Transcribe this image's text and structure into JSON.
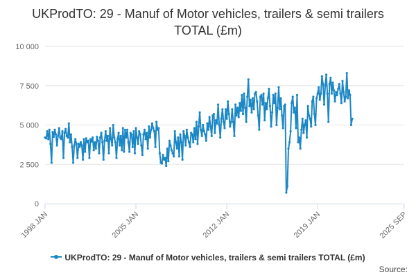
{
  "chart_data": {
    "type": "line",
    "title": "UKProdTO: 29 - Manuf of Motor vehicles, trailers & semi trailers TOTAL (£m)",
    "ylim": [
      0,
      10000
    ],
    "yticks": [
      0,
      2500,
      5000,
      7500,
      10000
    ],
    "ytick_labels": [
      "0",
      "2 500",
      "5 000",
      "7 500",
      "10 000"
    ],
    "xlim": [
      1998.0,
      2025.67
    ],
    "xticks": [
      {
        "pos": 1998.0,
        "label": "1998 JAN"
      },
      {
        "pos": 2005.0,
        "label": "2005 JAN"
      },
      {
        "pos": 2012.0,
        "label": "2012 JAN"
      },
      {
        "pos": 2019.0,
        "label": "2019 JAN"
      },
      {
        "pos": 2025.67,
        "label": "2025 SEP"
      }
    ],
    "grid": "horizontal",
    "series": [
      {
        "name": "UKProdTO: 29 - Manuf of Motor vehicles, trailers & semi trailers TOTAL (£m)",
        "color": "#1c87c5",
        "start_year": 1998,
        "start_month": 1,
        "values": [
          4200,
          4150,
          4600,
          4100,
          4700,
          3800,
          2600,
          4550,
          4250,
          4700,
          4400,
          3700,
          4300,
          4800,
          4200,
          4100,
          4600,
          2900,
          4500,
          4750,
          4300,
          4200,
          5100,
          3900,
          4400,
          3600,
          2600,
          3700,
          4100,
          3800,
          2900,
          3800,
          3600,
          3900,
          3700,
          2800,
          4100,
          3300,
          4150,
          3900,
          4000,
          2900,
          4100,
          3950,
          4200,
          3400,
          3900,
          3500,
          4250,
          4000,
          3200,
          4200,
          4500,
          3900,
          2800,
          4000,
          4600,
          4000,
          4300,
          3200,
          4800,
          4100,
          3700,
          5000,
          4200,
          3900,
          2900,
          4100,
          4500,
          3700,
          4300,
          3400,
          4800,
          3300,
          4700,
          4200,
          4700,
          3900,
          3300,
          4500,
          4400,
          3600,
          4600,
          3200,
          4800,
          4200,
          3800,
          4600,
          4400,
          3700,
          3100,
          4400,
          4700,
          4100,
          4500,
          3500,
          4900,
          4200,
          4700,
          5100,
          4800,
          4600,
          3600,
          5200,
          4700,
          4800,
          3200,
          2600,
          2550,
          3100,
          2800,
          2900,
          2400,
          3500,
          2700,
          4000,
          3700,
          3400,
          3200,
          3000,
          4600,
          3900,
          3500,
          4200,
          3000,
          4400,
          3900,
          2800,
          4600,
          4300,
          3700,
          4700,
          4200,
          3900,
          3600,
          4500,
          4400,
          3900,
          4800,
          4100,
          5200,
          3800,
          4900,
          5800,
          4700,
          4300,
          5000,
          4600,
          4400,
          4000,
          5100,
          4700,
          5500,
          4900,
          4300,
          5600,
          5700,
          4500,
          5300,
          5100,
          6300,
          5000,
          4200,
          5400,
          6000,
          5200,
          4800,
          6000,
          5400,
          6500,
          5700,
          4900,
          5200,
          6000,
          5200,
          4300,
          6300,
          5600,
          6100,
          5500,
          6400,
          5900,
          6900,
          5700,
          7000,
          6100,
          5200,
          6800,
          7900,
          6200,
          6600,
          5800,
          6700,
          6000,
          7000,
          7100,
          6500,
          5600,
          4700,
          6800,
          6900,
          6300,
          7000,
          5300,
          6400,
          6000,
          6700,
          7300,
          6200,
          4900,
          5800,
          6900,
          6400,
          7000,
          5000,
          6100,
          7400,
          6000,
          6700,
          5600,
          4800,
          6200,
          6300,
          700,
          1100,
          3500,
          3900,
          4600,
          6400,
          6800,
          5800,
          6100,
          4800,
          6900,
          3900,
          4200,
          3500,
          4700,
          5400,
          4500,
          5000,
          5300,
          4200,
          6200,
          5600,
          5400,
          4900,
          6500,
          6800,
          5700,
          5000,
          6700,
          7000,
          7400,
          6600,
          7000,
          8100,
          7600,
          6300,
          7500,
          8200,
          7000,
          5200,
          7600,
          8000,
          7000,
          7700,
          7200,
          6500,
          7100,
          6900,
          7300,
          7600,
          7000,
          6400,
          7800,
          7100,
          6500,
          6800,
          8300,
          6700,
          7200,
          6900,
          5000,
          5400
        ]
      }
    ]
  },
  "legend": {
    "label": "UKProdTO: 29 - Manuf of Motor vehicles, trailers & semi trailers TOTAL (£m)"
  },
  "source": {
    "label": "Source:"
  }
}
